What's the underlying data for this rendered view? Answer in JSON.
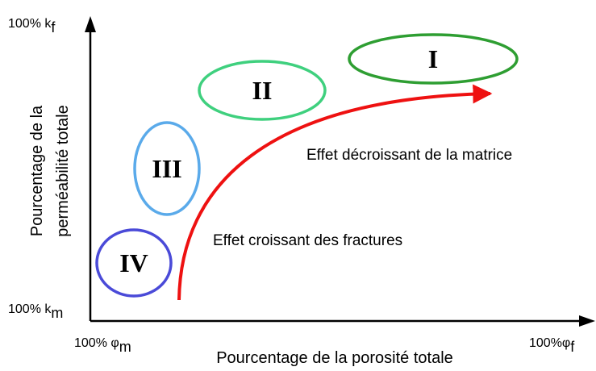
{
  "axes": {
    "y_top": {
      "text": "100% k",
      "sub": "f"
    },
    "y_bottom": {
      "text": "100% k",
      "sub": "m"
    },
    "x_left": {
      "text": "100% φ",
      "sub": "m"
    },
    "x_right": {
      "text": "100%φ",
      "sub": "f"
    },
    "y_title": [
      "Pourcentage de la",
      "perméabilité totale"
    ],
    "x_title": "Pourcentage de la porosité totale"
  },
  "regions": [
    {
      "label": "I",
      "color": "#2e9e32"
    },
    {
      "label": "II",
      "color": "#3fd07e"
    },
    {
      "label": "III",
      "color": "#5aaaea"
    },
    {
      "label": "IV",
      "color": "#4a4ad8"
    }
  ],
  "annotations": [
    "Effet décroissant de la matrice",
    "Effet croissant des fractures"
  ]
}
